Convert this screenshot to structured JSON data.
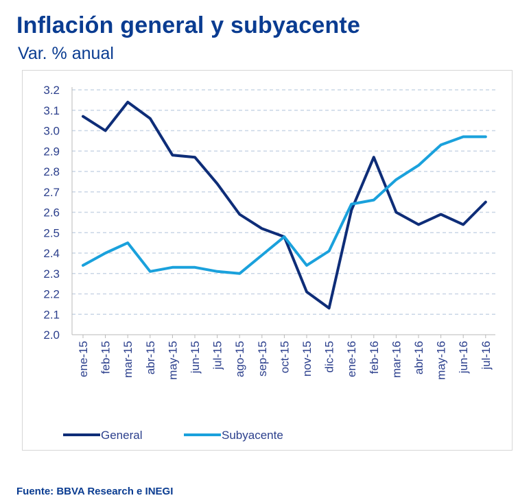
{
  "header": {
    "title": "Inflación general y subyacente",
    "subtitle": "Var. % anual"
  },
  "source": "Fuente: BBVA Research e INEGI",
  "colors": {
    "general": "#0e2d78",
    "subyacente": "#1aa1dc",
    "grid": "#c9d6e6",
    "text": "#0a3c91"
  },
  "chart_data": {
    "type": "line",
    "title": "Inflación general y subyacente",
    "subtitle": "Var. % anual",
    "xlabel": "",
    "ylabel": "",
    "ylim": [
      2.0,
      3.2
    ],
    "ytick_labels": [
      "3.2",
      "3.1",
      "3.0",
      "2.9",
      "2.8",
      "2.7",
      "2.6",
      "2.5",
      "2.4",
      "2.3",
      "2.2",
      "2.1",
      "2.0"
    ],
    "categories": [
      "ene-15",
      "feb-15",
      "mar-15",
      "abr-15",
      "may-15",
      "jun-15",
      "jul-15",
      "ago-15",
      "sep-15",
      "oct-15",
      "nov-15",
      "dic-15",
      "ene-16",
      "feb-16",
      "mar-16",
      "abr-16",
      "may-16",
      "jun-16",
      "jul-16"
    ],
    "series": [
      {
        "name": "General",
        "values": [
          3.07,
          3.0,
          3.14,
          3.06,
          2.88,
          2.87,
          2.74,
          2.59,
          2.52,
          2.48,
          2.21,
          2.13,
          2.61,
          2.87,
          2.6,
          2.54,
          2.59,
          2.54,
          2.65
        ]
      },
      {
        "name": "Subyacente",
        "values": [
          2.34,
          2.4,
          2.45,
          2.31,
          2.33,
          2.33,
          2.31,
          2.3,
          2.39,
          2.48,
          2.34,
          2.41,
          2.64,
          2.66,
          2.76,
          2.83,
          2.93,
          2.97,
          2.97
        ]
      }
    ],
    "grid": true,
    "legend_position": "bottom"
  }
}
